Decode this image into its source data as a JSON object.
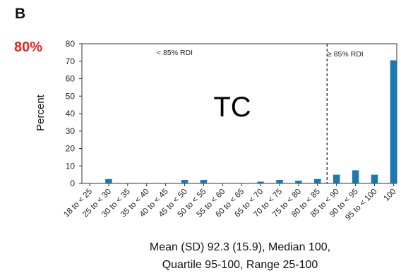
{
  "panel_label": "B",
  "callout": "80%",
  "chart_data": {
    "type": "bar",
    "ylabel": "Percent",
    "ylim": [
      0,
      80
    ],
    "yticks": [
      "0",
      "10",
      "20",
      "30",
      "40",
      "50",
      "60",
      "70",
      "80"
    ],
    "categories": [
      "18 to < 25",
      "25 to < 30",
      "30 to < 35",
      "35 to < 40",
      "40 to < 45",
      "45 to < 50",
      "50 to < 55",
      "55 to < 60",
      "60 to < 65",
      "65 to < 70",
      "70 to < 75",
      "75 to < 80",
      "80 to < 85",
      "85 to < 90",
      "90 to < 95",
      "95 to < 100",
      "100"
    ],
    "values": [
      0,
      2.5,
      0,
      0,
      0,
      2,
      2,
      0,
      0,
      1,
      2,
      1.5,
      2.5,
      5,
      7.5,
      5,
      70.5
    ],
    "bar_color": "#1b78b0",
    "threshold_after_category": "80 to < 85",
    "region_left_label": "< 85% RDI",
    "region_right_label": "≥ 85% RDI",
    "center_text": "TC",
    "caption_line1": "Mean (SD) 92.3 (15.9), Median 100,",
    "caption_line2": "Quartile 95-100, Range 25-100"
  }
}
